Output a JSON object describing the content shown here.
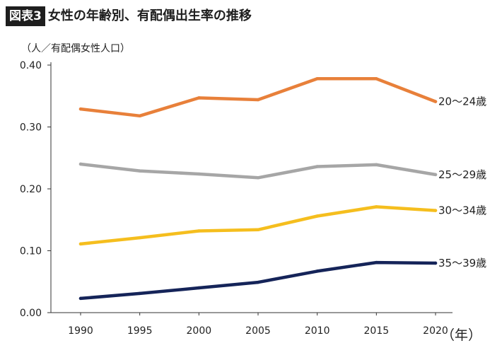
{
  "header": {
    "badge": "図表3",
    "title": "女性の年齢別、有配偶出生率の推移"
  },
  "chart_data": {
    "type": "line",
    "title": "女性の年齢別、有配偶出生率の推移",
    "ylabel": "（人／有配偶女性人口）",
    "xlabel": "（年）",
    "x": [
      1990,
      1995,
      2000,
      2005,
      2010,
      2015,
      2020
    ],
    "x_tick_labels": [
      "1990",
      "1995",
      "2000",
      "2005",
      "2010",
      "2015",
      "2020"
    ],
    "ylim": [
      0,
      0.4
    ],
    "y_ticks": [
      0,
      0.1,
      0.2,
      0.3,
      0.4
    ],
    "y_tick_labels": [
      "0.00",
      "0.10",
      "0.20",
      "0.30",
      "0.40"
    ],
    "grid": false,
    "legend": "line-end labels",
    "series": [
      {
        "name": "20〜24歳",
        "color": "#E8803A",
        "values": [
          0.329,
          0.318,
          0.347,
          0.344,
          0.378,
          0.378,
          0.341
        ]
      },
      {
        "name": "25〜29歳",
        "color": "#A6A6A6",
        "values": [
          0.24,
          0.229,
          0.224,
          0.218,
          0.236,
          0.239,
          0.223
        ]
      },
      {
        "name": "30〜34歳",
        "color": "#F5BE1E",
        "values": [
          0.111,
          0.121,
          0.132,
          0.134,
          0.156,
          0.171,
          0.165
        ]
      },
      {
        "name": "35〜39歳",
        "color": "#152459",
        "values": [
          0.023,
          0.031,
          0.04,
          0.049,
          0.067,
          0.081,
          0.08
        ]
      }
    ]
  }
}
